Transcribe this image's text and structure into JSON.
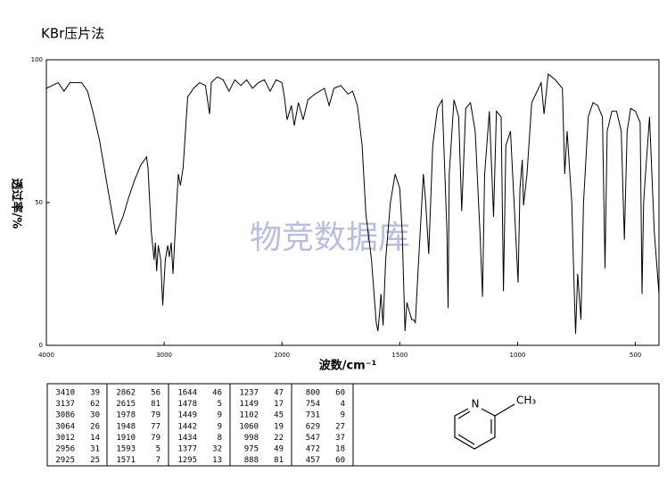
{
  "chart_data": {
    "type": "line",
    "title": "KBr压片法",
    "watermark": "物竞数据库",
    "xlabel": "波数/cm⁻¹",
    "ylabel": "透过率/%",
    "color": "#000000",
    "xlim": [
      4000,
      400
    ],
    "xscale_break": 2000,
    "ylim": [
      0,
      100
    ],
    "xticks": [
      4000,
      3000,
      2000,
      1500,
      1000,
      500
    ],
    "yticks": [
      0,
      50,
      100
    ],
    "x": [
      4000,
      3950,
      3900,
      3850,
      3800,
      3700,
      3650,
      3600,
      3550,
      3500,
      3450,
      3410,
      3350,
      3300,
      3250,
      3200,
      3150,
      3137,
      3110,
      3086,
      3075,
      3064,
      3050,
      3030,
      3012,
      2990,
      2970,
      2956,
      2940,
      2925,
      2900,
      2880,
      2862,
      2840,
      2800,
      2750,
      2700,
      2650,
      2615,
      2600,
      2550,
      2500,
      2450,
      2400,
      2350,
      2300,
      2250,
      2200,
      2150,
      2100,
      2050,
      2000,
      1990,
      1978,
      1960,
      1948,
      1930,
      1910,
      1890,
      1860,
      1820,
      1800,
      1780,
      1750,
      1720,
      1700,
      1680,
      1660,
      1644,
      1620,
      1600,
      1593,
      1585,
      1580,
      1571,
      1560,
      1540,
      1520,
      1500,
      1490,
      1478,
      1470,
      1460,
      1449,
      1442,
      1434,
      1420,
      1400,
      1390,
      1377,
      1360,
      1340,
      1320,
      1300,
      1295,
      1290,
      1270,
      1250,
      1237,
      1220,
      1200,
      1180,
      1160,
      1149,
      1140,
      1120,
      1102,
      1090,
      1070,
      1060,
      1050,
      1030,
      998,
      990,
      980,
      975,
      960,
      940,
      900,
      888,
      870,
      840,
      810,
      800,
      790,
      770,
      760,
      754,
      745,
      731,
      720,
      700,
      680,
      660,
      640,
      629,
      620,
      600,
      580,
      560,
      547,
      535,
      520,
      500,
      480,
      472,
      465,
      457,
      440,
      420,
      400
    ],
    "values": [
      90,
      91,
      92,
      89,
      92,
      92,
      89,
      81,
      72,
      60,
      48,
      39,
      45,
      52,
      58,
      63,
      66,
      62,
      40,
      30,
      36,
      26,
      35,
      30,
      14,
      30,
      35,
      31,
      36,
      25,
      45,
      60,
      56,
      62,
      87,
      90,
      92,
      91,
      81,
      92,
      94,
      93,
      89,
      93,
      91,
      93,
      90,
      92,
      93,
      89,
      93,
      92,
      87,
      79,
      84,
      77,
      85,
      79,
      86,
      88,
      90,
      84,
      90,
      91,
      88,
      89,
      84,
      70,
      46,
      30,
      8,
      5,
      12,
      18,
      7,
      30,
      50,
      60,
      55,
      40,
      5,
      15,
      12,
      9,
      9,
      8,
      30,
      60,
      50,
      32,
      70,
      83,
      86,
      40,
      13,
      60,
      86,
      80,
      47,
      83,
      85,
      75,
      40,
      17,
      60,
      82,
      45,
      82,
      80,
      19,
      70,
      75,
      22,
      55,
      65,
      49,
      60,
      85,
      92,
      81,
      95,
      93,
      90,
      60,
      75,
      50,
      20,
      4,
      25,
      9,
      50,
      80,
      85,
      84,
      80,
      27,
      75,
      82,
      82,
      75,
      37,
      75,
      83,
      82,
      78,
      18,
      50,
      60,
      80,
      40,
      18
    ]
  },
  "peaks": {
    "columns": [
      [
        [
          3410,
          39
        ],
        [
          3137,
          62
        ],
        [
          3086,
          30
        ],
        [
          3064,
          26
        ],
        [
          3012,
          14
        ],
        [
          2956,
          31
        ],
        [
          2925,
          25
        ]
      ],
      [
        [
          2862,
          56
        ],
        [
          2615,
          81
        ],
        [
          1978,
          79
        ],
        [
          1948,
          77
        ],
        [
          1910,
          79
        ],
        [
          1593,
          5
        ],
        [
          1571,
          7
        ]
      ],
      [
        [
          1644,
          46
        ],
        [
          1478,
          5
        ],
        [
          1449,
          9
        ],
        [
          1442,
          9
        ],
        [
          1434,
          8
        ],
        [
          1377,
          32
        ],
        [
          1295,
          13
        ]
      ],
      [
        [
          1237,
          47
        ],
        [
          1149,
          17
        ],
        [
          1102,
          45
        ],
        [
          1060,
          19
        ],
        [
          998,
          22
        ],
        [
          975,
          49
        ],
        [
          888,
          81
        ]
      ],
      [
        [
          800,
          60
        ],
        [
          754,
          4
        ],
        [
          731,
          9
        ],
        [
          629,
          27
        ],
        [
          547,
          37
        ],
        [
          472,
          18
        ],
        [
          457,
          60
        ]
      ]
    ]
  },
  "structure": {
    "atoms": [
      "N",
      "CH₃"
    ]
  }
}
